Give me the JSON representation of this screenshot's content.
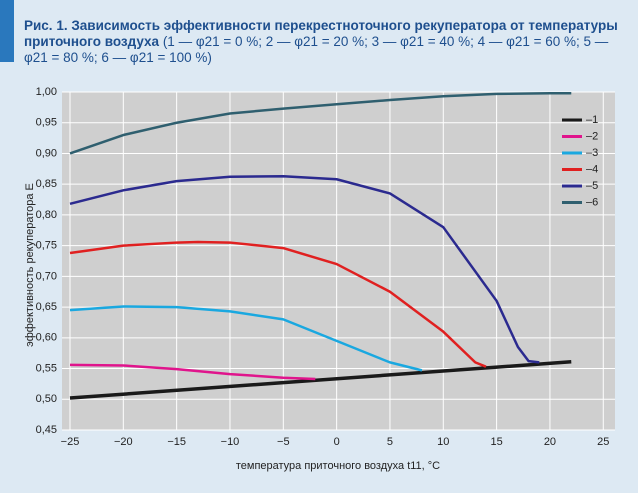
{
  "chart_data": {
    "type": "line",
    "title": "Рис. 1. Зависимость эффективности перекрестноточного рекуператора от температуры приточного воздуха",
    "subtitle": "(1 — φ21 = 0 %; 2 — φ21 = 20 %; 3 — φ21 = 40 %; 4 — φ21 = 60 %; 5 — φ21 = 80 %; 6 — φ21 = 100 %)",
    "x_label": "температура приточного воздуха t11, °C",
    "y_label": "эффективность рекуператора E",
    "xlim": [
      -25.75,
      26.1
    ],
    "ylim": [
      0.45,
      1.0
    ],
    "xticks": [
      {
        "value": -25,
        "label": "−25"
      },
      {
        "value": -20,
        "label": "−20"
      },
      {
        "value": -15,
        "label": "−15"
      },
      {
        "value": -10,
        "label": "−10"
      },
      {
        "value": -5,
        "label": "−5"
      },
      0,
      5,
      10,
      15,
      20,
      25
    ],
    "yticks": [
      {
        "value": 0.45,
        "label": "0,45"
      },
      {
        "value": 0.5,
        "label": "0,50"
      },
      {
        "value": 0.55,
        "label": "0,55"
      },
      {
        "value": 0.6,
        "label": "0,60"
      },
      {
        "value": 0.65,
        "label": "0,65"
      },
      {
        "value": 0.7,
        "label": "0,70"
      },
      {
        "value": 0.75,
        "label": "0,75"
      },
      {
        "value": 0.8,
        "label": "0,80"
      },
      {
        "value": 0.85,
        "label": "0,85"
      },
      {
        "value": 0.9,
        "label": "0,90"
      },
      {
        "value": 0.95,
        "label": "0,95"
      },
      {
        "value": 1.0,
        "label": "1,00"
      }
    ],
    "grid": true,
    "legend": "upper right",
    "series": [
      {
        "name": "–1",
        "color": "#1a1a1a",
        "x": [
          -25,
          22
        ],
        "values": [
          0.502,
          0.561
        ]
      },
      {
        "name": "–2",
        "color": "#e0148c",
        "x": [
          -25,
          -20,
          -15,
          -10,
          -5,
          -2
        ],
        "values": [
          0.556,
          0.555,
          0.549,
          0.541,
          0.535,
          0.533
        ]
      },
      {
        "name": "–3",
        "color": "#1aa8e0",
        "x": [
          -25,
          -20,
          -15,
          -10,
          -5,
          0,
          5,
          8
        ],
        "values": [
          0.645,
          0.651,
          0.65,
          0.643,
          0.63,
          0.595,
          0.56,
          0.547
        ]
      },
      {
        "name": "–4",
        "color": "#e02020",
        "x": [
          -25,
          -20,
          -15,
          -13,
          -10,
          -5,
          0,
          5,
          10,
          13,
          14
        ],
        "values": [
          0.738,
          0.75,
          0.755,
          0.756,
          0.755,
          0.746,
          0.72,
          0.675,
          0.61,
          0.56,
          0.553
        ]
      },
      {
        "name": "–5",
        "color": "#2b2a8f",
        "x": [
          -25,
          -20,
          -15,
          -10,
          -5,
          0,
          5,
          10,
          15,
          17,
          18,
          19
        ],
        "values": [
          0.818,
          0.84,
          0.855,
          0.862,
          0.863,
          0.858,
          0.835,
          0.78,
          0.66,
          0.585,
          0.562,
          0.56
        ]
      },
      {
        "name": "–6",
        "color": "#2f5f6f",
        "x": [
          -25,
          -20,
          -15,
          -10,
          -5,
          0,
          5,
          10,
          15,
          20,
          22
        ],
        "values": [
          0.9,
          0.93,
          0.95,
          0.965,
          0.973,
          0.98,
          0.987,
          0.993,
          0.997,
          0.998,
          0.998
        ]
      }
    ]
  }
}
